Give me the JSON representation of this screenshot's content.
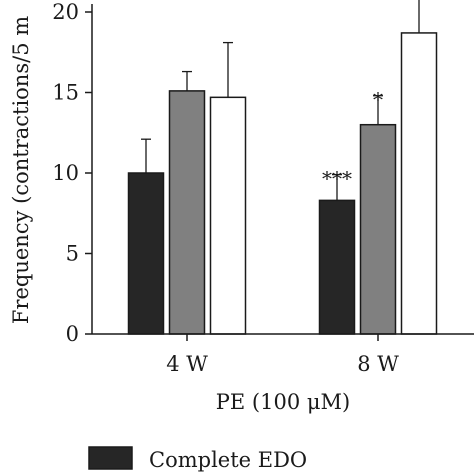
{
  "chart_data": {
    "type": "bar",
    "categories": [
      "4 W",
      "8 W"
    ],
    "ylabel": "Frequency (contractions/5 m",
    "xlabel": "PE (100 μM)",
    "ylim": [
      0,
      20.5
    ],
    "yticks": [
      "0",
      "5",
      "10",
      "15",
      "20"
    ],
    "series": [
      {
        "name": "Complete EDO",
        "color": "#262626",
        "values": [
          10.0,
          8.3
        ],
        "errors": [
          2.1,
          1.6
        ],
        "annotations": [
          "",
          "***"
        ]
      },
      {
        "name": "",
        "color": "#808080",
        "values": [
          15.1,
          13.0
        ],
        "errors": [
          1.2,
          1.8
        ],
        "annotations": [
          "",
          "*"
        ]
      },
      {
        "name": "",
        "color": "#ffffff",
        "values": [
          14.7,
          18.7
        ],
        "errors": [
          3.4,
          2.5
        ],
        "annotations": [
          "",
          ""
        ]
      }
    ]
  }
}
